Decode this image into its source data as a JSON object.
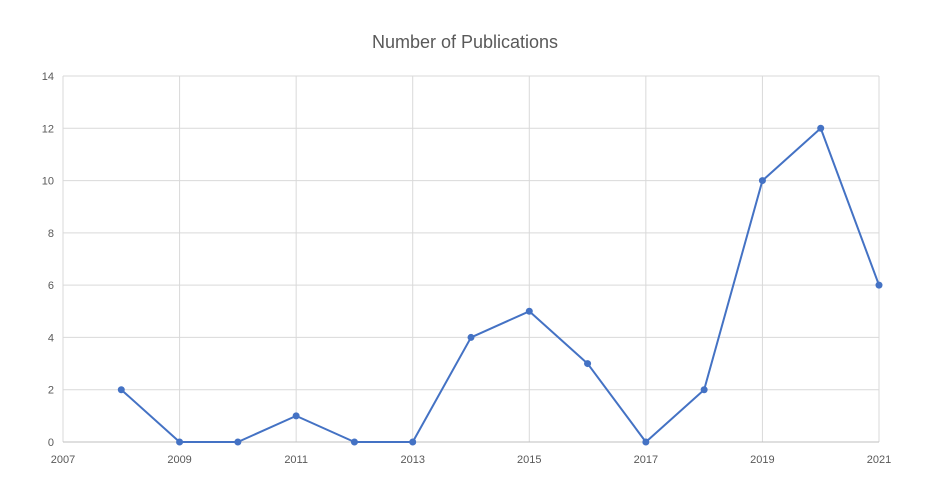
{
  "chart_data": {
    "type": "line",
    "title": "Number of Publications",
    "xlabel": "",
    "ylabel": "",
    "x": [
      2008,
      2009,
      2010,
      2011,
      2012,
      2013,
      2014,
      2015,
      2016,
      2017,
      2018,
      2019,
      2020,
      2021
    ],
    "series": [
      {
        "values": [
          2,
          0,
          0,
          1,
          0,
          0,
          4,
          5,
          3,
          0,
          2,
          10,
          12,
          6
        ]
      }
    ],
    "xlim": [
      2007,
      2021
    ],
    "ylim": [
      0,
      14
    ],
    "x_ticks": [
      2007,
      2009,
      2011,
      2013,
      2015,
      2017,
      2019,
      2021
    ],
    "y_ticks": [
      0,
      2,
      4,
      6,
      8,
      10,
      12,
      14
    ],
    "grid": true,
    "legend": "none",
    "colors": {
      "line": "#4472c4",
      "grid": "#d9d9d9",
      "text": "#595959"
    }
  }
}
